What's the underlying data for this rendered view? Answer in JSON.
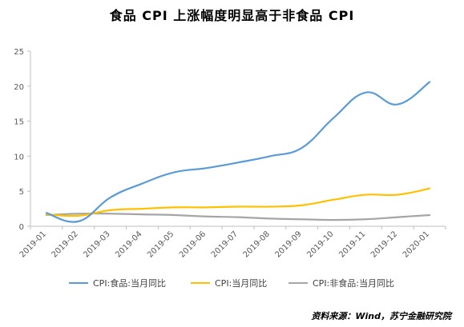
{
  "chart_data": {
    "type": "line",
    "title": "食品 CPI 上涨幅度明显高于非食品 CPI",
    "xlabel": "",
    "ylabel": "",
    "ylim": [
      0,
      25
    ],
    "yticks": [
      "0",
      "5",
      "10",
      "15",
      "20",
      "25"
    ],
    "grid": false,
    "legend_position": "bottom",
    "categories": [
      "2019-01",
      "2019-02",
      "2019-03",
      "2019-04",
      "2019-05",
      "2019-06",
      "2019-07",
      "2019-08",
      "2019-09",
      "2019-10",
      "2019-11",
      "2019-12",
      "2020-01"
    ],
    "series": [
      {
        "name": "CPI:食品:当月同比",
        "color": "#5b9bd5",
        "values": [
          1.9,
          0.7,
          4.1,
          6.1,
          7.7,
          8.3,
          9.1,
          10.0,
          11.2,
          15.5,
          19.1,
          17.4,
          20.6
        ]
      },
      {
        "name": "CPI:当月同比",
        "color": "#ffc000",
        "values": [
          1.7,
          1.5,
          2.3,
          2.5,
          2.7,
          2.7,
          2.8,
          2.8,
          3.0,
          3.8,
          4.5,
          4.5,
          5.4
        ]
      },
      {
        "name": "CPI:非食品:当月同比",
        "color": "#a5a5a5",
        "values": [
          1.6,
          1.8,
          1.8,
          1.7,
          1.6,
          1.4,
          1.3,
          1.1,
          1.0,
          0.9,
          1.0,
          1.3,
          1.6
        ]
      }
    ]
  },
  "source_note": "资料来源：Wind，苏宁金融研究院"
}
